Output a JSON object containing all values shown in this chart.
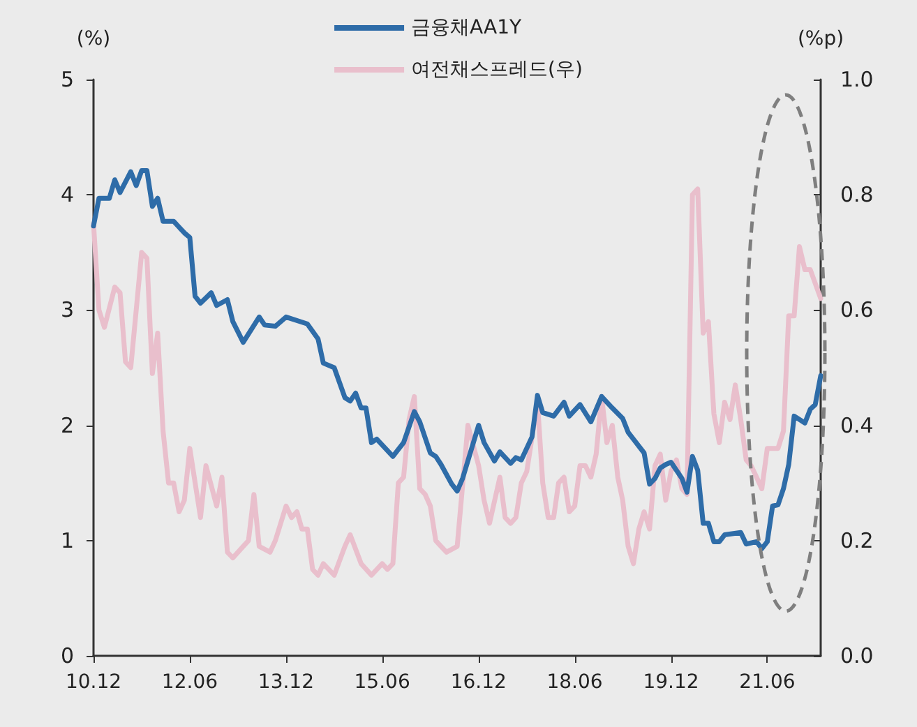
{
  "chart_data": {
    "type": "line",
    "xlim": [
      "2010-12",
      "2022-04"
    ],
    "xticks": [
      {
        "value": "2010-12",
        "label": "10.12"
      },
      {
        "value": "2012-06",
        "label": "12.06"
      },
      {
        "value": "2013-12",
        "label": "13.12"
      },
      {
        "value": "2015-06",
        "label": "15.06"
      },
      {
        "value": "2016-12",
        "label": "16.12"
      },
      {
        "value": "2018-06",
        "label": "18.06"
      },
      {
        "value": "2019-12",
        "label": "19.12"
      },
      {
        "value": "2021-06",
        "label": "21.06"
      }
    ],
    "ylabel": "(%)",
    "y2label": "(%p)",
    "ylim": [
      0,
      5
    ],
    "yticks": [
      0,
      1,
      2,
      3,
      4,
      5
    ],
    "y2lim": [
      0,
      1
    ],
    "y2ticks": [
      {
        "value": 0,
        "label": "0.0"
      },
      {
        "value": 0.2,
        "label": "0.2"
      },
      {
        "value": 0.4,
        "label": "0.4"
      },
      {
        "value": 0.6,
        "label": "0.6"
      },
      {
        "value": 0.8,
        "label": "0.8"
      },
      {
        "value": 1,
        "label": "1.0"
      }
    ],
    "grid": false,
    "legend": "top",
    "marker": "none",
    "line_style": "solid",
    "series": [
      {
        "name": "금융채AA1Y",
        "color": "#2e6ca8",
        "x": [
          "2010-12",
          "2011-01",
          "2011-03",
          "2011-04",
          "2011-05",
          "2011-07",
          "2011-08",
          "2011-09",
          "2011-10",
          "2011-11",
          "2011-12",
          "2012-01",
          "2012-03",
          "2012-05",
          "2012-06",
          "2012-07",
          "2012-08",
          "2012-10",
          "2012-11",
          "2013-01",
          "2013-02",
          "2013-04",
          "2013-07",
          "2013-08",
          "2013-10",
          "2013-12",
          "2014-04",
          "2014-06",
          "2014-07",
          "2014-09",
          "2014-11",
          "2014-12",
          "2015-01",
          "2015-02",
          "2015-03",
          "2015-04",
          "2015-05",
          "2015-08",
          "2015-10",
          "2015-12",
          "2016-01",
          "2016-03",
          "2016-04",
          "2016-05",
          "2016-07",
          "2016-08",
          "2016-09",
          "2016-12",
          "2017-01",
          "2017-03",
          "2017-04",
          "2017-06",
          "2017-07",
          "2017-08",
          "2017-10",
          "2017-11",
          "2017-12",
          "2018-02",
          "2018-04",
          "2018-05",
          "2018-07",
          "2018-09",
          "2018-11",
          "2019-01",
          "2019-03",
          "2019-04",
          "2019-05",
          "2019-07",
          "2019-08",
          "2019-09",
          "2019-10",
          "2019-11",
          "2019-12",
          "2020-02",
          "2020-03",
          "2020-04",
          "2020-05",
          "2020-06",
          "2020-07",
          "2020-08",
          "2020-09",
          "2020-10",
          "2021-01",
          "2021-02",
          "2021-04",
          "2021-05",
          "2021-06",
          "2021-07",
          "2021-08",
          "2021-09",
          "2021-10",
          "2021-11",
          "2022-01",
          "2022-02",
          "2022-03",
          "2022-04"
        ],
        "values": [
          3.73,
          3.97,
          3.97,
          4.13,
          4.02,
          4.2,
          4.08,
          4.21,
          4.21,
          3.9,
          3.97,
          3.77,
          3.77,
          3.67,
          3.63,
          3.12,
          3.06,
          3.15,
          3.04,
          3.09,
          2.9,
          2.72,
          2.94,
          2.87,
          2.86,
          2.94,
          2.88,
          2.75,
          2.54,
          2.5,
          2.24,
          2.21,
          2.28,
          2.15,
          2.15,
          1.85,
          1.88,
          1.73,
          1.85,
          2.12,
          2.03,
          1.76,
          1.73,
          1.66,
          1.49,
          1.43,
          1.54,
          2.0,
          1.85,
          1.69,
          1.77,
          1.67,
          1.72,
          1.7,
          1.9,
          2.26,
          2.11,
          2.08,
          2.2,
          2.08,
          2.18,
          2.03,
          2.25,
          2.15,
          2.06,
          1.94,
          1.88,
          1.76,
          1.49,
          1.54,
          1.63,
          1.66,
          1.68,
          1.54,
          1.42,
          1.73,
          1.61,
          1.15,
          1.15,
          0.99,
          0.99,
          1.05,
          1.07,
          0.97,
          0.99,
          0.93,
          0.99,
          1.3,
          1.31,
          1.45,
          1.66,
          2.08,
          2.02,
          2.14,
          2.18,
          2.43
        ]
      },
      {
        "name": "여전채스프레드(우)",
        "color": "#e9bfcc",
        "axis": "y2",
        "x": [
          "2010-12",
          "2011-01",
          "2011-02",
          "2011-04",
          "2011-05",
          "2011-06",
          "2011-07",
          "2011-09",
          "2011-10",
          "2011-11",
          "2011-12",
          "2012-01",
          "2012-02",
          "2012-03",
          "2012-04",
          "2012-05",
          "2012-06",
          "2012-08",
          "2012-09",
          "2012-11",
          "2012-12",
          "2013-01",
          "2013-02",
          "2013-04",
          "2013-05",
          "2013-06",
          "2013-07",
          "2013-09",
          "2013-10",
          "2013-12",
          "2014-01",
          "2014-02",
          "2014-03",
          "2014-04",
          "2014-05",
          "2014-06",
          "2014-07",
          "2014-09",
          "2014-11",
          "2014-12",
          "2015-02",
          "2015-04",
          "2015-06",
          "2015-07",
          "2015-08",
          "2015-09",
          "2015-10",
          "2015-11",
          "2015-12",
          "2016-01",
          "2016-02",
          "2016-03",
          "2016-04",
          "2016-05",
          "2016-06",
          "2016-08",
          "2016-10",
          "2016-12",
          "2017-01",
          "2017-02",
          "2017-04",
          "2017-05",
          "2017-06",
          "2017-07",
          "2017-08",
          "2017-09",
          "2017-11",
          "2017-12",
          "2018-01",
          "2018-02",
          "2018-03",
          "2018-04",
          "2018-05",
          "2018-06",
          "2018-07",
          "2018-08",
          "2018-09",
          "2018-10",
          "2018-11",
          "2018-12",
          "2019-01",
          "2019-02",
          "2019-03",
          "2019-04",
          "2019-05",
          "2019-06",
          "2019-07",
          "2019-08",
          "2019-09",
          "2019-10",
          "2019-11",
          "2019-12",
          "2020-01",
          "2020-02",
          "2020-03",
          "2020-04",
          "2020-05",
          "2020-06",
          "2020-07",
          "2020-08",
          "2020-09",
          "2020-10",
          "2020-11",
          "2020-12",
          "2021-01",
          "2021-02",
          "2021-03",
          "2021-04",
          "2021-05",
          "2021-06",
          "2021-08",
          "2021-09",
          "2021-10",
          "2021-11",
          "2021-12",
          "2022-01",
          "2022-02",
          "2022-04"
        ],
        "values": [
          0.75,
          0.6,
          0.57,
          0.64,
          0.63,
          0.51,
          0.5,
          0.7,
          0.69,
          0.49,
          0.56,
          0.39,
          0.3,
          0.3,
          0.25,
          0.27,
          0.36,
          0.24,
          0.33,
          0.26,
          0.31,
          0.18,
          0.17,
          0.19,
          0.2,
          0.28,
          0.19,
          0.18,
          0.2,
          0.26,
          0.24,
          0.25,
          0.22,
          0.22,
          0.15,
          0.14,
          0.16,
          0.14,
          0.19,
          0.21,
          0.16,
          0.14,
          0.16,
          0.15,
          0.16,
          0.3,
          0.31,
          0.41,
          0.45,
          0.29,
          0.28,
          0.26,
          0.2,
          0.19,
          0.18,
          0.19,
          0.4,
          0.33,
          0.27,
          0.23,
          0.31,
          0.24,
          0.23,
          0.24,
          0.3,
          0.32,
          0.44,
          0.3,
          0.24,
          0.24,
          0.3,
          0.31,
          0.25,
          0.26,
          0.33,
          0.33,
          0.31,
          0.35,
          0.45,
          0.37,
          0.4,
          0.31,
          0.27,
          0.19,
          0.16,
          0.22,
          0.25,
          0.22,
          0.33,
          0.35,
          0.27,
          0.32,
          0.34,
          0.29,
          0.28,
          0.8,
          0.81,
          0.56,
          0.58,
          0.42,
          0.37,
          0.44,
          0.41,
          0.47,
          0.41,
          0.34,
          0.33,
          0.31,
          0.29,
          0.36,
          0.36,
          0.39,
          0.59,
          0.59,
          0.71,
          0.67,
          0.67,
          0.62
        ]
      }
    ]
  }
}
